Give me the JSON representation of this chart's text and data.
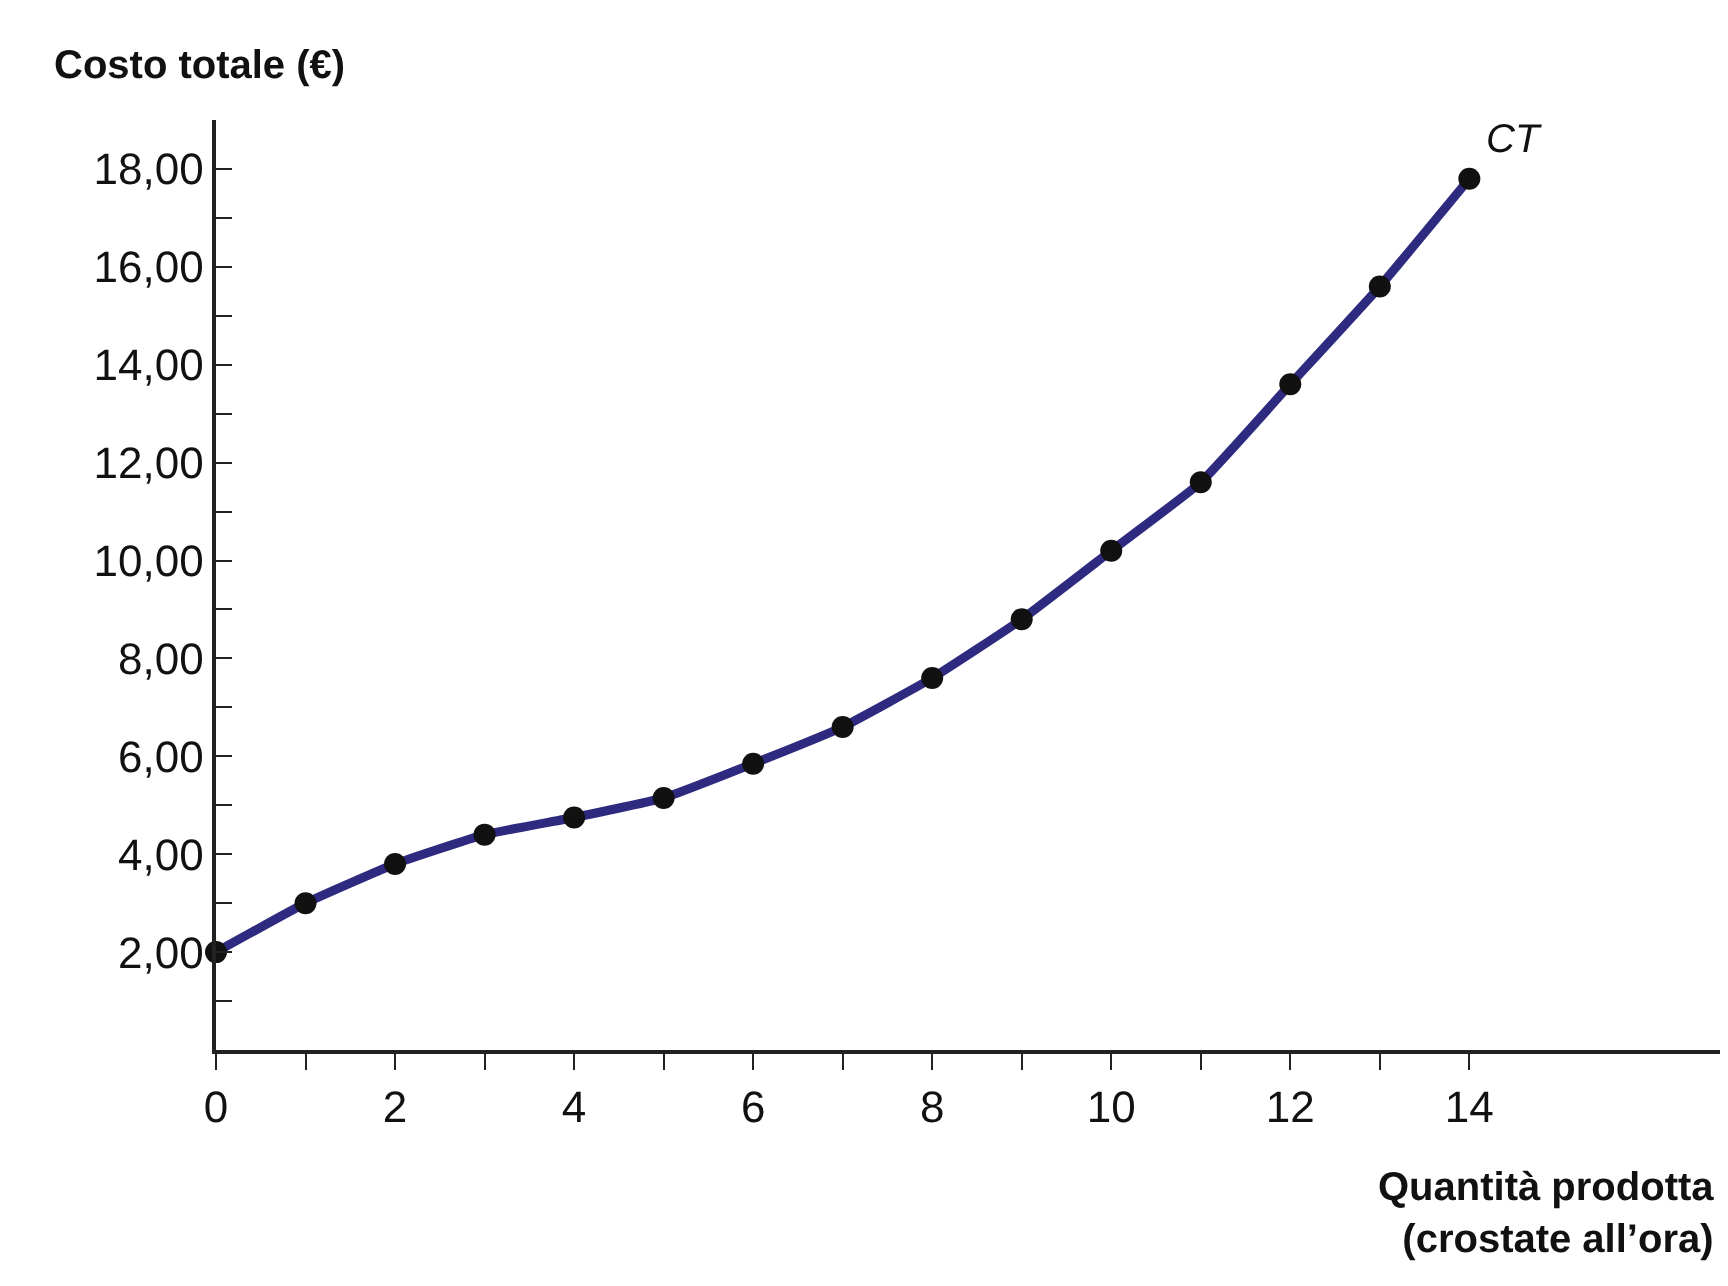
{
  "chart_data": {
    "type": "line",
    "ylabel": "Costo totale (€)",
    "xlabel": "Quantità prodotta\n(crostate all’ora)",
    "x": [
      0,
      1,
      2,
      3,
      4,
      5,
      6,
      7,
      8,
      9,
      10,
      11,
      12,
      13,
      14
    ],
    "series": [
      {
        "name": "CT",
        "color": "#2e2a7f",
        "values": [
          2.0,
          3.0,
          3.8,
          4.4,
          4.75,
          5.15,
          5.85,
          6.6,
          7.6,
          8.8,
          10.2,
          11.6,
          13.6,
          15.6,
          17.8
        ]
      }
    ],
    "xlim": [
      0,
      16.8
    ],
    "ylim": [
      0,
      19
    ],
    "xticks": [
      0,
      {
        "value": 1,
        "label": null
      },
      2,
      {
        "value": 3,
        "label": null
      },
      4,
      {
        "value": 5,
        "label": null
      },
      6,
      {
        "value": 7,
        "label": null
      },
      8,
      {
        "value": 9,
        "label": null
      },
      10,
      {
        "value": 11,
        "label": null
      },
      12,
      {
        "value": 13,
        "label": null
      },
      14
    ],
    "yticks": [
      {
        "value": 1,
        "label": null
      },
      {
        "value": 2,
        "label": "2,00"
      },
      {
        "value": 3,
        "label": null
      },
      {
        "value": 4,
        "label": "4,00"
      },
      {
        "value": 5,
        "label": null
      },
      {
        "value": 6,
        "label": "6,00"
      },
      {
        "value": 7,
        "label": null
      },
      {
        "value": 8,
        "label": "8,00"
      },
      {
        "value": 9,
        "label": null
      },
      {
        "value": 10,
        "label": "10,00"
      },
      {
        "value": 11,
        "label": null
      },
      {
        "value": 12,
        "label": "12,00"
      },
      {
        "value": 13,
        "label": null
      },
      {
        "value": 14,
        "label": "14,00"
      },
      {
        "value": 15,
        "label": null
      },
      {
        "value": 16,
        "label": "16,00"
      },
      {
        "value": 17,
        "label": null
      },
      {
        "value": 18,
        "label": "18,00"
      }
    ],
    "marker": "circle",
    "line_style": "solid",
    "legend": false
  }
}
